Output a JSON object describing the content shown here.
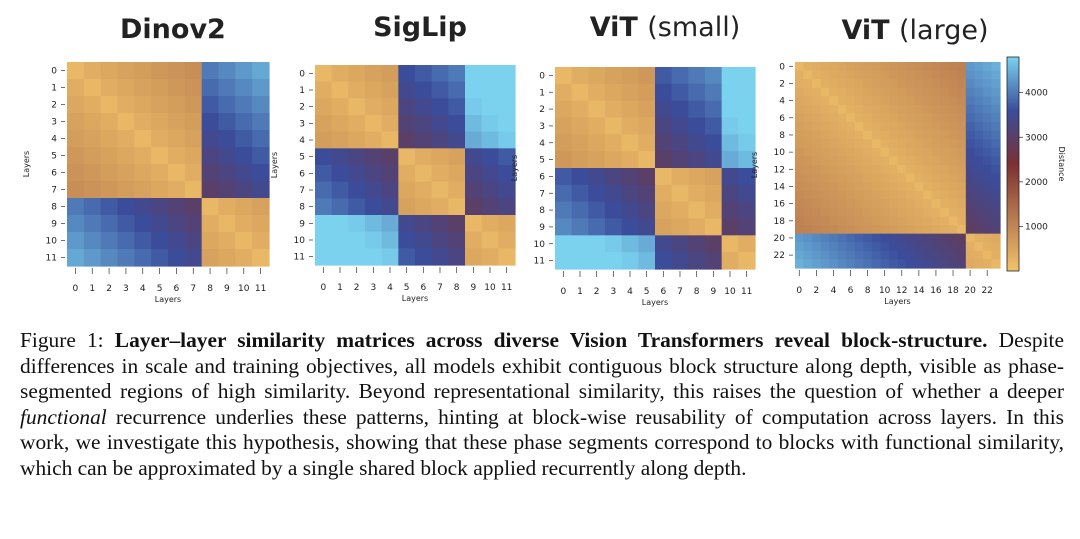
{
  "figure": {
    "panel_titles": [
      {
        "main": "Dinov2",
        "sub": ""
      },
      {
        "main": "SigLip",
        "sub": ""
      },
      {
        "main": "ViT",
        "sub": "(small)"
      },
      {
        "main": "ViT",
        "sub": "(large)"
      }
    ],
    "colors": {
      "low": "#f2c46b",
      "mid": "#7c2f33",
      "high_mid": "#3a4d9c",
      "high": "#7bd2ee"
    }
  },
  "caption": {
    "label": "Figure 1:",
    "bold": "Layer–layer similarity matrices across diverse Vision Transformers reveal block-structure.",
    "text1": "Despite differences in scale and training objectives, all models exhibit contiguous block structure along depth, visible as phase-segmented regions of high similarity. Beyond representational similarity, this raises the question of whether a deeper",
    "italic": "functional",
    "text2": "recurrence underlies these patterns, hinting at block-wise reusability of computation across layers. In this work, we investigate this hypothesis, showing that these phase segments correspond to blocks with functional similarity, which can be approximated by a single shared block applied recurrently along depth."
  },
  "chart_data": [
    {
      "type": "heatmap",
      "title": "Dinov2",
      "xlabel": "Layers",
      "ylabel": "Layers",
      "ticks": [
        0,
        1,
        2,
        3,
        4,
        5,
        6,
        7,
        8,
        9,
        10,
        11
      ],
      "blocks": [
        [
          0,
          7
        ],
        [
          8,
          11
        ]
      ],
      "n": 12
    },
    {
      "type": "heatmap",
      "title": "SigLip",
      "xlabel": "Layers",
      "ylabel": "Layers",
      "ticks": [
        0,
        1,
        2,
        3,
        4,
        5,
        6,
        7,
        8,
        9,
        10,
        11
      ],
      "blocks": [
        [
          0,
          4
        ],
        [
          5,
          8
        ],
        [
          9,
          11
        ]
      ],
      "n": 12
    },
    {
      "type": "heatmap",
      "title": "ViT (small)",
      "xlabel": "Layers",
      "ylabel": "Layers",
      "ticks": [
        0,
        1,
        2,
        3,
        4,
        5,
        6,
        7,
        8,
        9,
        10,
        11
      ],
      "blocks": [
        [
          0,
          5
        ],
        [
          6,
          9
        ],
        [
          10,
          11
        ]
      ],
      "n": 12
    },
    {
      "type": "heatmap",
      "title": "ViT (large)",
      "xlabel": "Layers",
      "ylabel": "Layers",
      "ticks": [
        0,
        2,
        4,
        6,
        8,
        10,
        12,
        14,
        16,
        18,
        20,
        22
      ],
      "blocks": [
        [
          0,
          19
        ],
        [
          20,
          23
        ]
      ],
      "n": 24,
      "colorbar": {
        "label": "Distance",
        "ticks": [
          1000,
          2000,
          3000,
          4000
        ],
        "range": [
          0,
          4800
        ]
      }
    }
  ]
}
